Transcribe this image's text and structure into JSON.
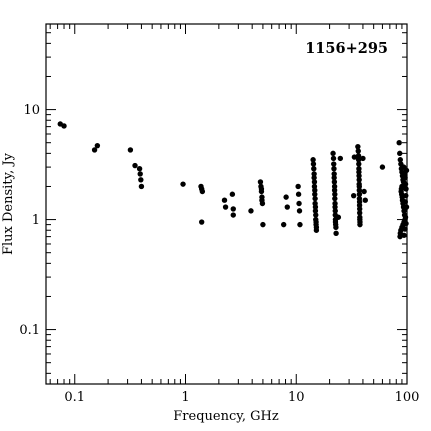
{
  "chart_data": {
    "type": "scatter",
    "title": "1156+295",
    "xlabel": "Frequency, GHz",
    "ylabel": "Flux Density, Jy",
    "x_scale": "log",
    "y_scale": "log",
    "xlim": [
      0.055,
      100
    ],
    "ylim": [
      0.032,
      60
    ],
    "x_ticks": [
      "0.1",
      "1",
      "10",
      "100"
    ],
    "y_ticks": [
      "0.1",
      "1",
      "10"
    ],
    "grid": false,
    "point_color": "#000000",
    "points": [
      [
        0.074,
        7.4
      ],
      [
        0.08,
        7.1
      ],
      [
        0.151,
        4.3
      ],
      [
        0.16,
        4.7
      ],
      [
        0.318,
        4.3
      ],
      [
        0.35,
        3.1
      ],
      [
        0.385,
        2.9
      ],
      [
        0.39,
        2.6
      ],
      [
        0.395,
        2.3
      ],
      [
        0.4,
        2.0
      ],
      [
        0.95,
        2.1
      ],
      [
        1.38,
        2.0
      ],
      [
        1.4,
        1.9
      ],
      [
        1.42,
        1.8
      ],
      [
        1.4,
        0.95
      ],
      [
        2.25,
        1.5
      ],
      [
        2.3,
        1.3
      ],
      [
        2.65,
        1.7
      ],
      [
        2.7,
        1.25
      ],
      [
        2.7,
        1.1
      ],
      [
        3.9,
        1.2
      ],
      [
        4.75,
        2.2
      ],
      [
        4.8,
        2.0
      ],
      [
        4.85,
        1.9
      ],
      [
        4.85,
        1.8
      ],
      [
        4.9,
        1.6
      ],
      [
        4.9,
        1.5
      ],
      [
        4.95,
        1.4
      ],
      [
        5.0,
        0.9
      ],
      [
        7.7,
        0.9
      ],
      [
        8.1,
        1.6
      ],
      [
        8.3,
        1.3
      ],
      [
        10.4,
        2.0
      ],
      [
        10.5,
        1.7
      ],
      [
        10.6,
        1.4
      ],
      [
        10.7,
        1.2
      ],
      [
        10.8,
        0.9
      ],
      [
        14.2,
        3.5
      ],
      [
        14.3,
        3.2
      ],
      [
        14.4,
        2.9
      ],
      [
        14.5,
        2.6
      ],
      [
        14.5,
        2.4
      ],
      [
        14.6,
        2.2
      ],
      [
        14.6,
        2.0
      ],
      [
        14.7,
        1.85
      ],
      [
        14.7,
        1.7
      ],
      [
        14.8,
        1.55
      ],
      [
        14.8,
        1.4
      ],
      [
        14.9,
        1.3
      ],
      [
        14.9,
        1.2
      ],
      [
        15.0,
        1.1
      ],
      [
        15.0,
        1.0
      ],
      [
        15.1,
        0.95
      ],
      [
        15.1,
        0.9
      ],
      [
        15.2,
        0.85
      ],
      [
        15.2,
        0.8
      ],
      [
        21.5,
        4.0
      ],
      [
        21.7,
        3.6
      ],
      [
        21.8,
        3.2
      ],
      [
        21.9,
        2.9
      ],
      [
        22.0,
        2.6
      ],
      [
        22.0,
        2.4
      ],
      [
        22.1,
        2.2
      ],
      [
        22.2,
        2.0
      ],
      [
        22.2,
        1.85
      ],
      [
        22.3,
        1.7
      ],
      [
        22.3,
        1.55
      ],
      [
        22.4,
        1.4
      ],
      [
        22.4,
        1.3
      ],
      [
        22.5,
        1.2
      ],
      [
        22.5,
        1.1
      ],
      [
        22.6,
        1.0
      ],
      [
        22.6,
        0.95
      ],
      [
        22.7,
        0.9
      ],
      [
        22.8,
        0.85
      ],
      [
        22.9,
        0.75
      ],
      [
        25.0,
        3.6
      ],
      [
        24.0,
        1.05
      ],
      [
        33.0,
        1.65
      ],
      [
        33.5,
        3.7
      ],
      [
        36.0,
        4.6
      ],
      [
        36.3,
        4.2
      ],
      [
        36.5,
        3.8
      ],
      [
        36.6,
        3.5
      ],
      [
        36.7,
        3.2
      ],
      [
        36.8,
        2.9
      ],
      [
        36.8,
        2.7
      ],
      [
        36.9,
        2.5
      ],
      [
        37.0,
        2.3
      ],
      [
        37.0,
        2.1
      ],
      [
        37.1,
        2.0
      ],
      [
        37.1,
        1.85
      ],
      [
        37.2,
        1.7
      ],
      [
        37.2,
        1.55
      ],
      [
        37.3,
        1.45
      ],
      [
        37.3,
        1.35
      ],
      [
        37.4,
        1.25
      ],
      [
        37.4,
        1.15
      ],
      [
        37.5,
        1.05
      ],
      [
        37.5,
        1.0
      ],
      [
        37.6,
        0.95
      ],
      [
        37.6,
        0.9
      ],
      [
        40.0,
        3.6
      ],
      [
        41.0,
        1.8
      ],
      [
        42.0,
        1.5
      ],
      [
        60.0,
        3.0
      ],
      [
        85.0,
        5.0
      ],
      [
        86.0,
        4.0
      ],
      [
        87.0,
        3.5
      ],
      [
        88.0,
        3.2
      ],
      [
        89.0,
        2.9
      ],
      [
        90.0,
        2.7
      ],
      [
        91.0,
        2.5
      ],
      [
        92.0,
        2.3
      ],
      [
        93.0,
        2.2
      ],
      [
        90.0,
        2.0
      ],
      [
        89.0,
        1.9
      ],
      [
        88.5,
        1.8
      ],
      [
        89.5,
        1.7
      ],
      [
        90.5,
        1.6
      ],
      [
        91.0,
        1.5
      ],
      [
        92.0,
        1.4
      ],
      [
        93.0,
        1.3
      ],
      [
        94.0,
        1.2
      ],
      [
        95.0,
        1.1
      ],
      [
        96.0,
        1.0
      ],
      [
        94.0,
        0.95
      ],
      [
        92.0,
        0.9
      ],
      [
        90.0,
        0.85
      ],
      [
        88.0,
        0.8
      ],
      [
        87.0,
        0.75
      ],
      [
        86.5,
        0.7
      ],
      [
        93.5,
        3.0
      ],
      [
        95.0,
        2.6
      ],
      [
        96.0,
        2.4
      ],
      [
        97.0,
        2.1
      ],
      [
        98.0,
        1.9
      ],
      [
        97.5,
        1.65
      ],
      [
        96.5,
        1.45
      ],
      [
        95.5,
        1.25
      ],
      [
        97.0,
        1.05
      ],
      [
        98.0,
        0.92
      ],
      [
        96.0,
        0.82
      ],
      [
        94.0,
        0.72
      ],
      [
        99.0,
        2.8
      ],
      [
        99.0,
        1.3
      ]
    ]
  }
}
